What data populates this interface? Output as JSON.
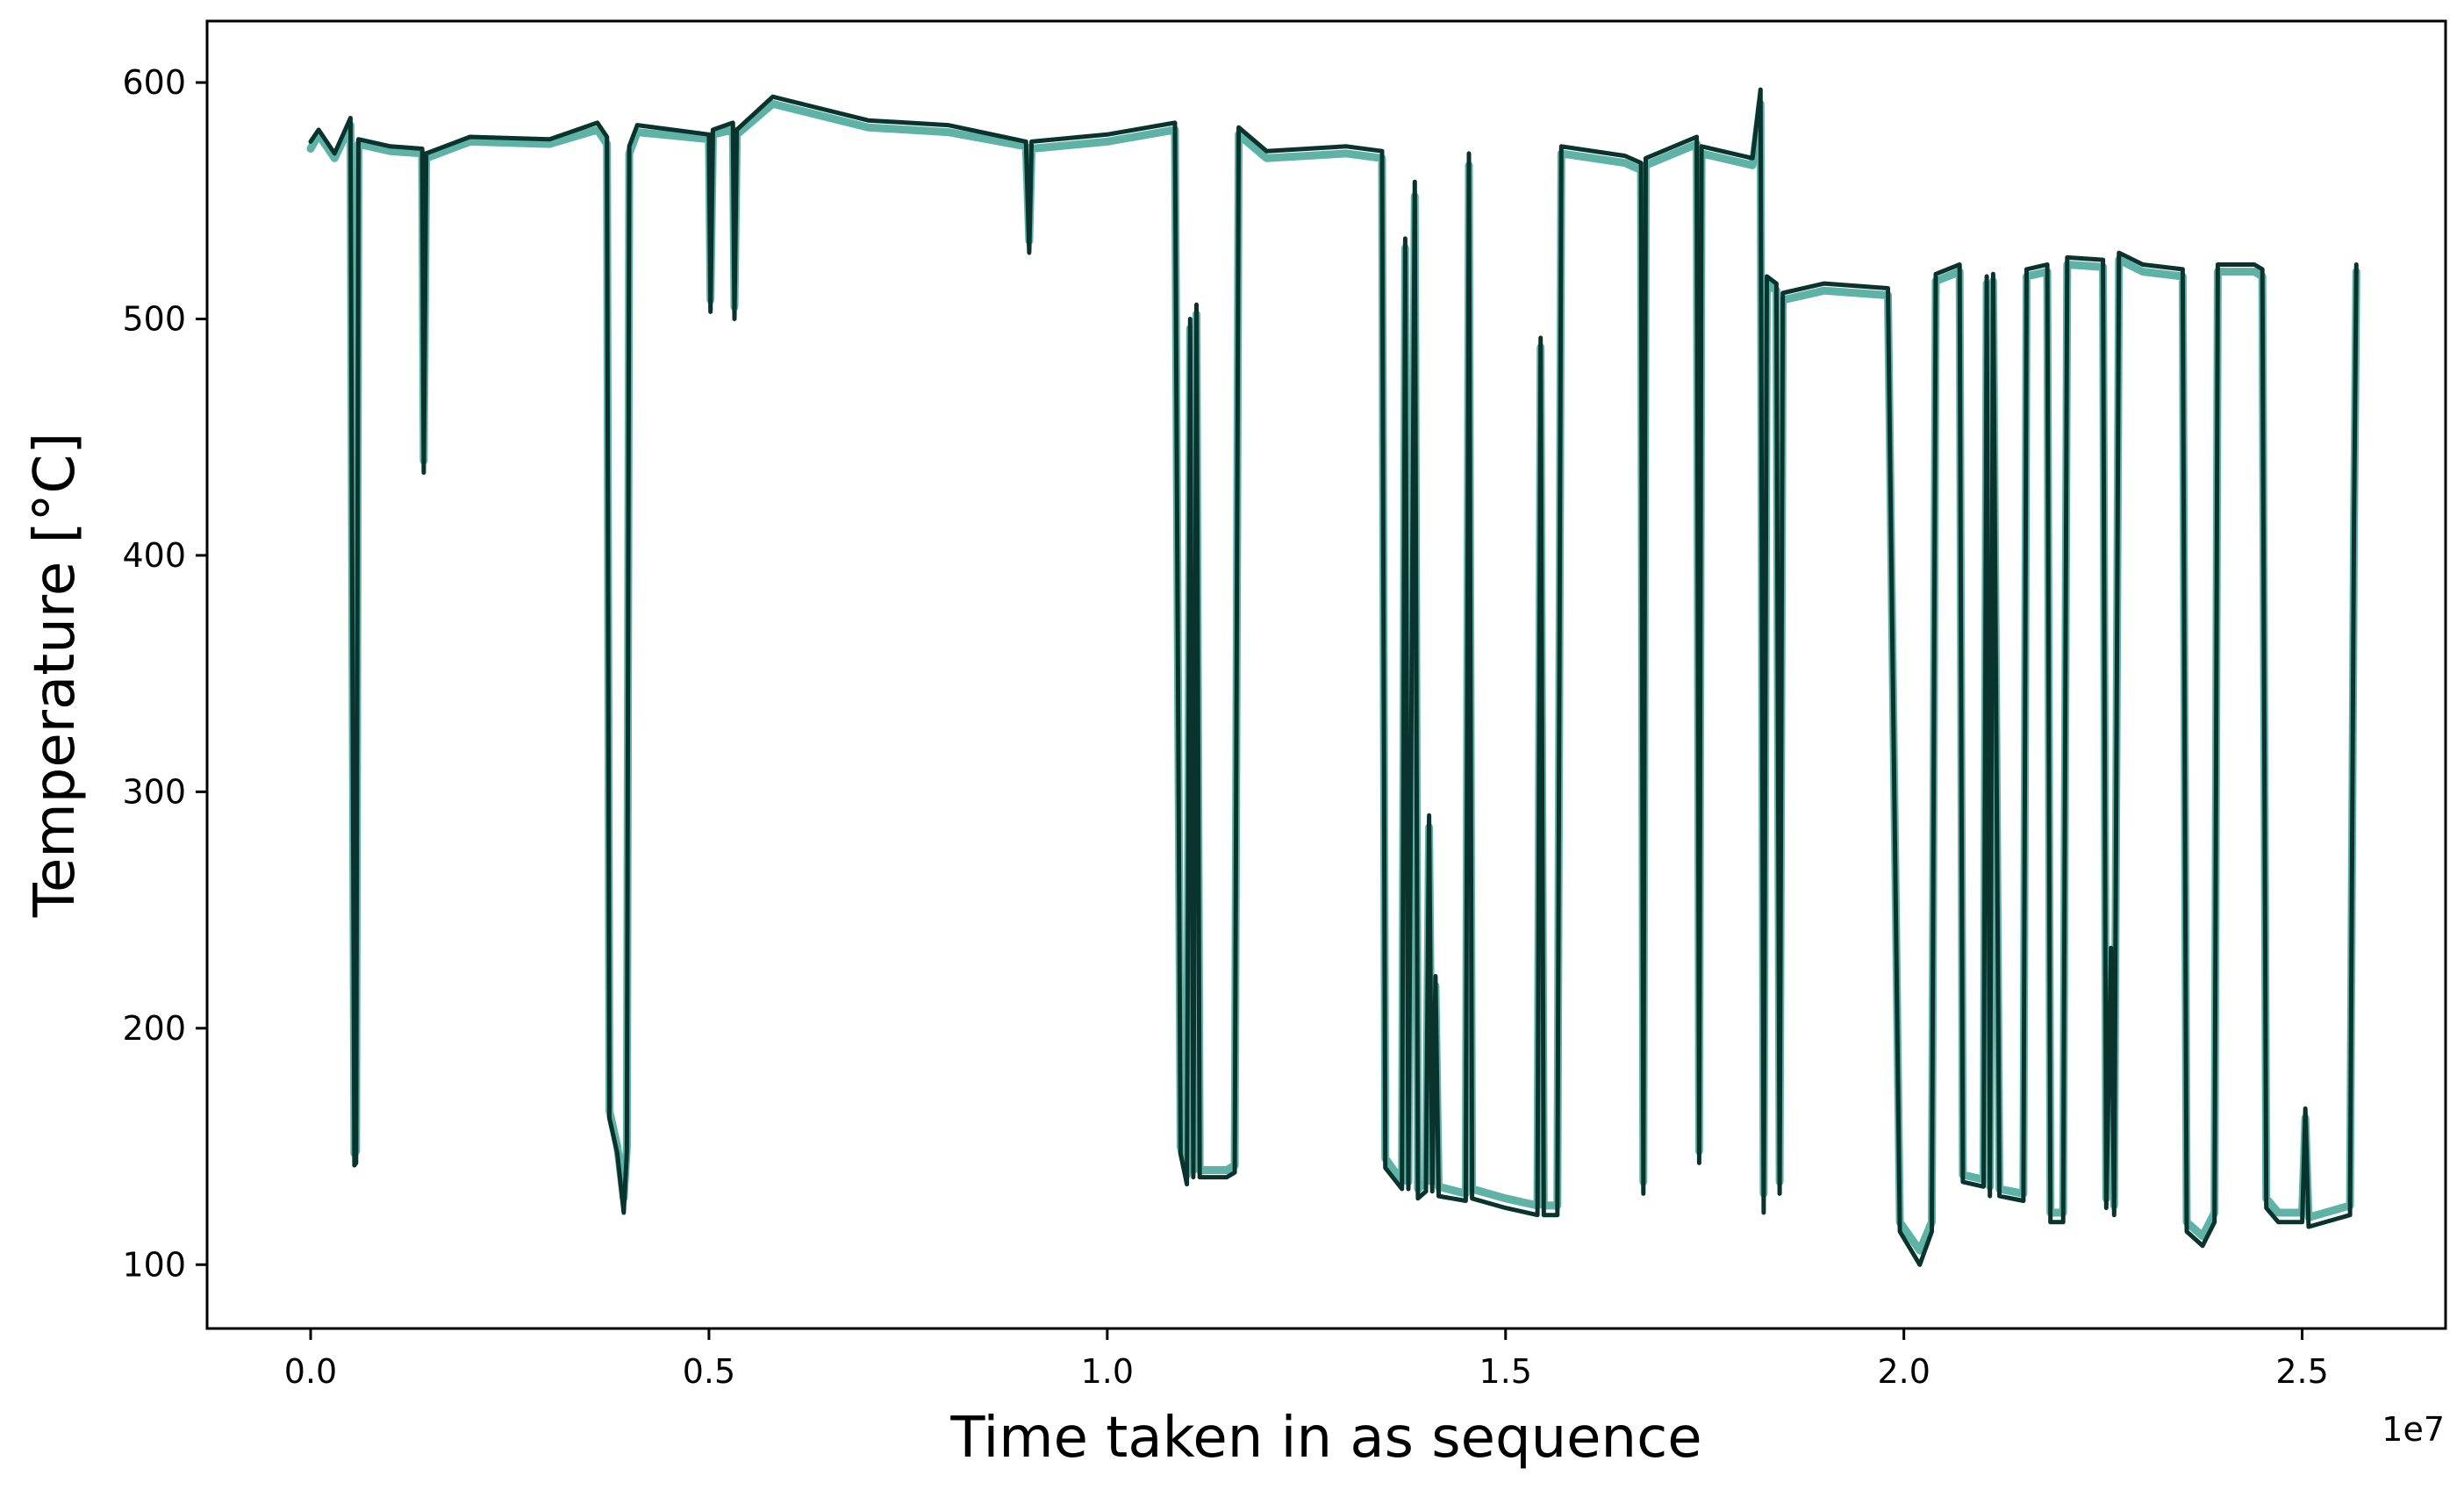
{
  "chart_data": {
    "type": "line",
    "title": "",
    "xlabel": "Time taken in as sequence",
    "ylabel": "Temperature [°C]",
    "x_offset_label": "1e7",
    "xlim": [
      -0.13,
      2.68
    ],
    "ylim": [
      73,
      626
    ],
    "x_ticks": [
      0.0,
      0.5,
      1.0,
      1.5,
      2.0,
      2.5
    ],
    "x_tick_labels": [
      "0.0",
      "0.5",
      "1.0",
      "1.5",
      "2.0",
      "2.5"
    ],
    "y_ticks": [
      100,
      200,
      300,
      400,
      500,
      600
    ],
    "y_tick_labels": [
      "100",
      "200",
      "300",
      "400",
      "500",
      "600"
    ],
    "grid": false,
    "legend": "none",
    "series": [
      {
        "color": "#5fb3a6",
        "points": [
          [
            0.0,
            572
          ],
          [
            0.01,
            578
          ],
          [
            0.03,
            568
          ],
          [
            0.05,
            582
          ],
          [
            0.055,
            147
          ],
          [
            0.057,
            148
          ],
          [
            0.06,
            574
          ],
          [
            0.1,
            571
          ],
          [
            0.14,
            570
          ],
          [
            0.142,
            440
          ],
          [
            0.145,
            568
          ],
          [
            0.2,
            575
          ],
          [
            0.3,
            574
          ],
          [
            0.36,
            580
          ],
          [
            0.372,
            574
          ],
          [
            0.375,
            165
          ],
          [
            0.385,
            150
          ],
          [
            0.393,
            128
          ],
          [
            0.397,
            150
          ],
          [
            0.4,
            570
          ],
          [
            0.41,
            579
          ],
          [
            0.5,
            576
          ],
          [
            0.502,
            508
          ],
          [
            0.505,
            578
          ],
          [
            0.53,
            580
          ],
          [
            0.532,
            505
          ],
          [
            0.535,
            578
          ],
          [
            0.58,
            591
          ],
          [
            0.7,
            581
          ],
          [
            0.8,
            579
          ],
          [
            0.898,
            573
          ],
          [
            0.902,
            533
          ],
          [
            0.905,
            572
          ],
          [
            1.0,
            575
          ],
          [
            1.085,
            580
          ],
          [
            1.092,
            150
          ],
          [
            1.1,
            138
          ],
          [
            1.104,
            496
          ],
          [
            1.108,
            140
          ],
          [
            1.112,
            502
          ],
          [
            1.116,
            140
          ],
          [
            1.15,
            140
          ],
          [
            1.16,
            142
          ],
          [
            1.165,
            578
          ],
          [
            1.2,
            568
          ],
          [
            1.3,
            570
          ],
          [
            1.345,
            568
          ],
          [
            1.349,
            145
          ],
          [
            1.37,
            135
          ],
          [
            1.374,
            530
          ],
          [
            1.378,
            135
          ],
          [
            1.386,
            552
          ],
          [
            1.39,
            132
          ],
          [
            1.4,
            135
          ],
          [
            1.404,
            285
          ],
          [
            1.408,
            135
          ],
          [
            1.412,
            218
          ],
          [
            1.416,
            133
          ],
          [
            1.45,
            130
          ],
          [
            1.454,
            565
          ],
          [
            1.458,
            132
          ],
          [
            1.5,
            128
          ],
          [
            1.54,
            125
          ],
          [
            1.544,
            488
          ],
          [
            1.548,
            125
          ],
          [
            1.565,
            125
          ],
          [
            1.57,
            570
          ],
          [
            1.65,
            566
          ],
          [
            1.67,
            563
          ],
          [
            1.673,
            135
          ],
          [
            1.676,
            565
          ],
          [
            1.74,
            574
          ],
          [
            1.743,
            148
          ],
          [
            1.746,
            570
          ],
          [
            1.81,
            565
          ],
          [
            1.82,
            591
          ],
          [
            1.824,
            130
          ],
          [
            1.828,
            515
          ],
          [
            1.84,
            512
          ],
          [
            1.844,
            135
          ],
          [
            1.848,
            508
          ],
          [
            1.9,
            512
          ],
          [
            1.98,
            510
          ],
          [
            1.995,
            118
          ],
          [
            2.02,
            106
          ],
          [
            2.035,
            118
          ],
          [
            2.04,
            516
          ],
          [
            2.07,
            520
          ],
          [
            2.074,
            138
          ],
          [
            2.1,
            136
          ],
          [
            2.104,
            515
          ],
          [
            2.108,
            133
          ],
          [
            2.112,
            516
          ],
          [
            2.12,
            132
          ],
          [
            2.15,
            130
          ],
          [
            2.154,
            518
          ],
          [
            2.18,
            520
          ],
          [
            2.184,
            122
          ],
          [
            2.2,
            122
          ],
          [
            2.205,
            523
          ],
          [
            2.25,
            522
          ],
          [
            2.254,
            128
          ],
          [
            2.26,
            232
          ],
          [
            2.264,
            125
          ],
          [
            2.27,
            525
          ],
          [
            2.3,
            520
          ],
          [
            2.35,
            518
          ],
          [
            2.355,
            118
          ],
          [
            2.375,
            112
          ],
          [
            2.39,
            122
          ],
          [
            2.394,
            520
          ],
          [
            2.44,
            520
          ],
          [
            2.45,
            518
          ],
          [
            2.455,
            128
          ],
          [
            2.47,
            122
          ],
          [
            2.5,
            122
          ],
          [
            2.504,
            162
          ],
          [
            2.508,
            120
          ],
          [
            2.56,
            125
          ],
          [
            2.565,
            410
          ],
          [
            2.568,
            520
          ]
        ]
      },
      {
        "color": "#0b332e",
        "points": [
          [
            0.0,
            575
          ],
          [
            0.01,
            580
          ],
          [
            0.03,
            570
          ],
          [
            0.05,
            585
          ],
          [
            0.055,
            142
          ],
          [
            0.057,
            143
          ],
          [
            0.06,
            576
          ],
          [
            0.1,
            573
          ],
          [
            0.14,
            572
          ],
          [
            0.142,
            435
          ],
          [
            0.145,
            570
          ],
          [
            0.2,
            577
          ],
          [
            0.3,
            576
          ],
          [
            0.36,
            583
          ],
          [
            0.372,
            577
          ],
          [
            0.375,
            162
          ],
          [
            0.385,
            147
          ],
          [
            0.393,
            122
          ],
          [
            0.397,
            148
          ],
          [
            0.4,
            573
          ],
          [
            0.41,
            582
          ],
          [
            0.5,
            578
          ],
          [
            0.502,
            503
          ],
          [
            0.505,
            580
          ],
          [
            0.53,
            583
          ],
          [
            0.532,
            500
          ],
          [
            0.535,
            580
          ],
          [
            0.58,
            594
          ],
          [
            0.7,
            584
          ],
          [
            0.8,
            582
          ],
          [
            0.898,
            575
          ],
          [
            0.902,
            528
          ],
          [
            0.905,
            575
          ],
          [
            1.0,
            578
          ],
          [
            1.085,
            583
          ],
          [
            1.092,
            147
          ],
          [
            1.1,
            134
          ],
          [
            1.104,
            500
          ],
          [
            1.108,
            137
          ],
          [
            1.112,
            506
          ],
          [
            1.116,
            137
          ],
          [
            1.15,
            137
          ],
          [
            1.16,
            139
          ],
          [
            1.165,
            581
          ],
          [
            1.2,
            571
          ],
          [
            1.3,
            573
          ],
          [
            1.345,
            571
          ],
          [
            1.349,
            141
          ],
          [
            1.37,
            132
          ],
          [
            1.374,
            534
          ],
          [
            1.378,
            132
          ],
          [
            1.386,
            558
          ],
          [
            1.39,
            128
          ],
          [
            1.4,
            131
          ],
          [
            1.404,
            290
          ],
          [
            1.408,
            131
          ],
          [
            1.412,
            222
          ],
          [
            1.416,
            129
          ],
          [
            1.45,
            127
          ],
          [
            1.454,
            570
          ],
          [
            1.458,
            128
          ],
          [
            1.5,
            124
          ],
          [
            1.54,
            121
          ],
          [
            1.544,
            492
          ],
          [
            1.548,
            121
          ],
          [
            1.565,
            121
          ],
          [
            1.57,
            573
          ],
          [
            1.65,
            569
          ],
          [
            1.67,
            566
          ],
          [
            1.673,
            130
          ],
          [
            1.676,
            568
          ],
          [
            1.74,
            577
          ],
          [
            1.743,
            143
          ],
          [
            1.746,
            573
          ],
          [
            1.81,
            568
          ],
          [
            1.82,
            597
          ],
          [
            1.824,
            122
          ],
          [
            1.828,
            518
          ],
          [
            1.84,
            515
          ],
          [
            1.844,
            130
          ],
          [
            1.848,
            511
          ],
          [
            1.9,
            515
          ],
          [
            1.98,
            513
          ],
          [
            1.995,
            114
          ],
          [
            2.02,
            100
          ],
          [
            2.035,
            114
          ],
          [
            2.04,
            519
          ],
          [
            2.07,
            523
          ],
          [
            2.074,
            135
          ],
          [
            2.1,
            133
          ],
          [
            2.104,
            518
          ],
          [
            2.108,
            129
          ],
          [
            2.112,
            519
          ],
          [
            2.12,
            129
          ],
          [
            2.15,
            127
          ],
          [
            2.154,
            521
          ],
          [
            2.18,
            523
          ],
          [
            2.184,
            118
          ],
          [
            2.2,
            118
          ],
          [
            2.205,
            526
          ],
          [
            2.25,
            525
          ],
          [
            2.254,
            124
          ],
          [
            2.26,
            234
          ],
          [
            2.264,
            121
          ],
          [
            2.27,
            528
          ],
          [
            2.3,
            523
          ],
          [
            2.35,
            521
          ],
          [
            2.355,
            114
          ],
          [
            2.375,
            108
          ],
          [
            2.39,
            118
          ],
          [
            2.394,
            523
          ],
          [
            2.44,
            523
          ],
          [
            2.45,
            521
          ],
          [
            2.455,
            124
          ],
          [
            2.47,
            118
          ],
          [
            2.5,
            118
          ],
          [
            2.504,
            166
          ],
          [
            2.508,
            116
          ],
          [
            2.56,
            121
          ],
          [
            2.565,
            413
          ],
          [
            2.568,
            523
          ]
        ]
      }
    ]
  }
}
